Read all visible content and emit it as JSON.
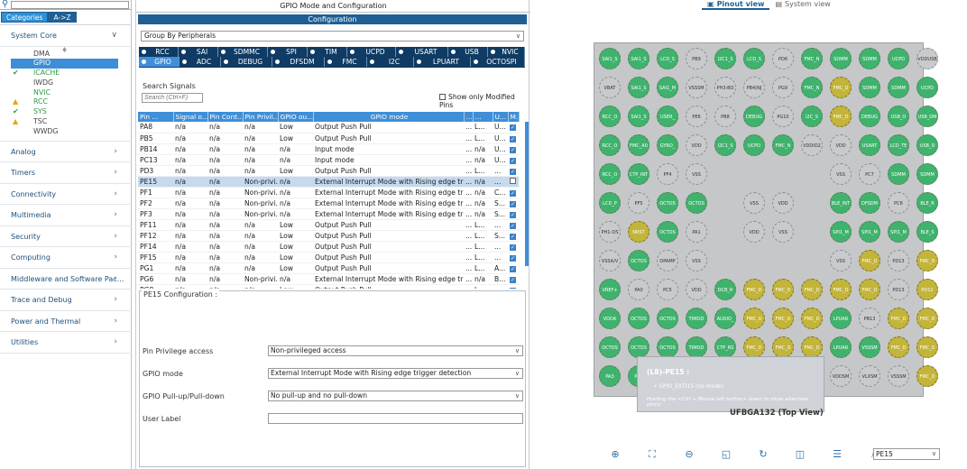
{
  "left": {
    "search_value": "",
    "tabs": [
      {
        "label": "Categories",
        "selected": true
      },
      {
        "label": "A->Z",
        "selected": false
      }
    ],
    "categories": [
      "System Core",
      "Analog",
      "Timers",
      "Connectivity",
      "Multimedia",
      "Security",
      "Computing",
      "Middleware and Software Pac...",
      "Trace and Debug",
      "Power and Thermal",
      "Utilities"
    ],
    "system_core_items": [
      {
        "label": "DMA",
        "state": "none"
      },
      {
        "label": "GPIO",
        "state": "selected"
      },
      {
        "label": "ICACHE",
        "state": "ok"
      },
      {
        "label": "IWDG",
        "state": "none"
      },
      {
        "label": "NVIC",
        "state": "none-green"
      },
      {
        "label": "RCC",
        "state": "warn"
      },
      {
        "label": "SYS",
        "state": "ok"
      },
      {
        "label": "TSC",
        "state": "warn-plain"
      },
      {
        "label": "WWDG",
        "state": "none"
      }
    ]
  },
  "mid": {
    "title": "GPIO Mode and Configuration",
    "config_header": "Configuration",
    "group_by": "Group By Peripherals",
    "periph_row1": [
      "RCC",
      "SAI",
      "SDMMC",
      "SPI",
      "TIM",
      "UCPD",
      "USART",
      "USB",
      "NVIC"
    ],
    "periph_row2": [
      "GPIO",
      "ADC",
      "DEBUG",
      "DFSDM",
      "FMC",
      "I2C",
      "LPUART",
      "OCTOSPI"
    ],
    "search_label": "Search Signals",
    "search_placeholder": "Search (Ctrl+F)",
    "modified_only_label": "Show only Modified Pins",
    "columns": [
      "Pin ...",
      "Signal o...",
      "Pin Cont...",
      "Pin Privil...",
      "GPIO ou...",
      "GPIO mode",
      "...",
      "...",
      "U...",
      "M..."
    ],
    "rows": [
      [
        "PA8",
        "n/a",
        "n/a",
        "n/a",
        "Low",
        "Output Push Pull",
        "...",
        "L...",
        "U...",
        true
      ],
      [
        "PB5",
        "n/a",
        "n/a",
        "n/a",
        "Low",
        "Output Push Pull",
        "...",
        "L...",
        "U...",
        true
      ],
      [
        "PB14",
        "n/a",
        "n/a",
        "n/a",
        "n/a",
        "Input mode",
        "...",
        "n/a",
        "U...",
        true
      ],
      [
        "PC13",
        "n/a",
        "n/a",
        "n/a",
        "n/a",
        "Input mode",
        "...",
        "n/a",
        "U...",
        true
      ],
      [
        "PD3",
        "n/a",
        "n/a",
        "n/a",
        "Low",
        "Output Push Pull",
        "...",
        "L...",
        "...",
        true
      ],
      [
        "PE15",
        "n/a",
        "n/a",
        "Non-privi...",
        "n/a",
        "External Interrupt Mode with Rising edge trigg...",
        "...",
        "n/a",
        "...",
        false
      ],
      [
        "PF1",
        "n/a",
        "n/a",
        "Non-privi...",
        "n/a",
        "External Interrupt Mode with Rising edge trigg...",
        "...",
        "n/a",
        "C...",
        true
      ],
      [
        "PF2",
        "n/a",
        "n/a",
        "Non-privi...",
        "n/a",
        "External Interrupt Mode with Rising edge trigg...",
        "...",
        "n/a",
        "S...",
        true
      ],
      [
        "PF3",
        "n/a",
        "n/a",
        "Non-privi...",
        "n/a",
        "External Interrupt Mode with Rising edge trigg...",
        "...",
        "n/a",
        "S...",
        true
      ],
      [
        "PF11",
        "n/a",
        "n/a",
        "n/a",
        "Low",
        "Output Push Pull",
        "...",
        "L...",
        "...",
        true
      ],
      [
        "PF12",
        "n/a",
        "n/a",
        "n/a",
        "Low",
        "Output Push Pull",
        "...",
        "L...",
        "S...",
        true
      ],
      [
        "PF14",
        "n/a",
        "n/a",
        "n/a",
        "Low",
        "Output Push Pull",
        "...",
        "L...",
        "...",
        true
      ],
      [
        "PF15",
        "n/a",
        "n/a",
        "n/a",
        "Low",
        "Output Push Pull",
        "...",
        "L...",
        "...",
        true
      ],
      [
        "PG1",
        "n/a",
        "n/a",
        "n/a",
        "Low",
        "Output Push Pull",
        "...",
        "L...",
        "A...",
        true
      ],
      [
        "PG6",
        "n/a",
        "n/a",
        "Non-privi...",
        "n/a",
        "External Interrupt Mode with Rising edge trigg...",
        "...",
        "n/a",
        "B...",
        true
      ],
      [
        "PG8",
        "n/a",
        "n/a",
        "n/a",
        "Low",
        "Output Push Pull",
        "...",
        "L...",
        "...",
        true
      ]
    ],
    "selected_row": 5,
    "pin_config": {
      "title": "PE15 Configuration :",
      "fields": [
        {
          "label": "Pin Privilege access",
          "value": "Non-privileged access"
        },
        {
          "label": "GPIO mode",
          "value": "External Interrupt Mode with Rising edge trigger detection"
        },
        {
          "label": "GPIO Pull-up/Pull-down",
          "value": "No pull-up and no pull-down"
        },
        {
          "label": "User Label",
          "value": ""
        }
      ]
    }
  },
  "right": {
    "tabs": [
      {
        "label": "Pinout view",
        "selected": true
      },
      {
        "label": "System view",
        "selected": false
      }
    ],
    "package": "UFBGA132 (Top View)",
    "pin_grid": [
      [
        "g:SAI1_S",
        "g:SAI1_S",
        "g:LCD_S",
        "e:PB9",
        "g:I2C1_S",
        "g:LCD_S",
        "e:PD6",
        "g:FMC_N",
        "g:SDMM",
        "g:SDMM",
        "g:UCPD",
        "e:VDDUSB"
      ],
      [
        "e:VBAT",
        "g:SAI1_S",
        "g:SAI1_M",
        "e:VSSSM",
        "e:PH3-BO",
        "e:PB4(NJ",
        "e:PG9",
        "g:FMC_N",
        "y:FMC_D",
        "g:SDMM",
        "g:SDMM",
        "g:UCPD"
      ],
      [
        "g:RCC_O",
        "g:SAI1_S",
        "g:USER_",
        "e:PE6",
        "e:PB8",
        "g:DEBUG",
        "e:PG10",
        "g:I2C_S",
        "y:FMC_D",
        "g:DEBUG",
        "g:USB_O",
        "g:USB_DM"
      ],
      [
        "g:RCC_O",
        "g:FMC_A0",
        "g:GYRO_",
        "e:VDD",
        "g:I2C1_S",
        "g:UCPD",
        "g:FMC_N",
        "e:VDDIO2",
        "e:VDD",
        "g:USART",
        "g:LCD_TE",
        "g:USB_D"
      ],
      [
        "g:RCC_O",
        "g:CTP_INT",
        "e:PF4",
        "e:VSS",
        "",
        "",
        "",
        "",
        "e:VSS",
        "e:PC7",
        "g:SDMM",
        "g:SDMM"
      ],
      [
        "g:LCD_P",
        "e:PF5",
        "g:OCTOS",
        "g:OCTOS",
        "",
        "e:VSS",
        "e:VDD",
        "",
        "g:BLE_INT",
        "g:DFSDM",
        "e:PC6",
        "g:BLE_R"
      ],
      [
        "e:PH1-OS",
        "y:NRST",
        "g:OCTOS",
        "e:PA1",
        "",
        "e:VDD",
        "e:VSS",
        "",
        "g:SPI1_M",
        "g:SPI1_M",
        "g:SPI1_M",
        "g:BLE_S"
      ],
      [
        "e:VSSA/V",
        "g:OCTOS",
        "e:OPAMP",
        "e:VSS",
        "",
        "",
        "",
        "",
        "e:VSS",
        "y:FMC_D",
        "e:PD13",
        "y:FMC_D"
      ],
      [
        "g:VREF+",
        "e:PA0",
        "e:PC5",
        "e:VDD",
        "g:DCB_R",
        "y:FMC_D",
        "y:FMC_D",
        "y:FMC_D",
        "y:FMC_D",
        "y:FMC_D",
        "e:PD13",
        "y:PD12"
      ],
      [
        "g:VDDA",
        "g:OCTOS",
        "g:OCTOS",
        "g:TIMOD",
        "g:AUDIO_",
        "y:FMC_D",
        "y:FMC_D",
        "y:FMC_D",
        "g:LPUAR",
        "e:PB13",
        "y:FMC_D",
        "y:FMC_D"
      ],
      [
        "g:OCTOS",
        "g:OCTOS",
        "g:OCTOS",
        "g:TIMOD",
        "g:CTP_RS",
        "y:FMC_D",
        "y:FMC_D",
        "y:FMC_D",
        "g:LPUAR",
        "g:VSSSM",
        "y:FMC_D",
        "y:FMC_D"
      ],
      [
        "g:PA3",
        "g:PA4",
        "g:PA5",
        "g:PA6",
        "g:PA7",
        "g:PB0",
        "g:PB1",
        "e:PB2",
        "e:VDDSM",
        "e:VLXSM",
        "e:VSSSM",
        "y:FMC_D"
      ]
    ],
    "tooltip": {
      "title": "(L8)-PE15 :",
      "signal": "• GPIO_EXTI15 (no mode)",
      "hint": "Holding the <Ctrl + Mouse left button> down to show alternate pin(s)"
    },
    "find_value": "PE15",
    "toolbar_icons": [
      "zoom-in-icon",
      "fit-icon",
      "zoom-out-icon",
      "export-icon",
      "rotate-icon",
      "split-icon",
      "list-icon",
      "search-icon"
    ]
  }
}
